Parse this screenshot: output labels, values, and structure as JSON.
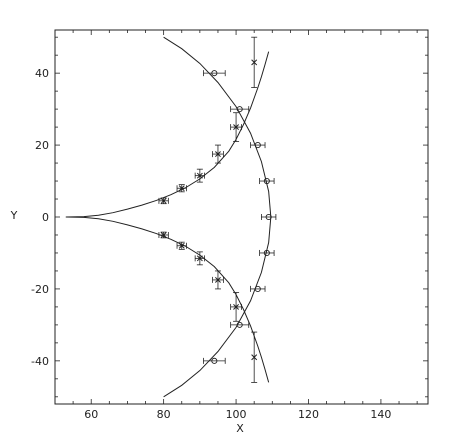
{
  "chart_data": {
    "type": "scatter",
    "title": "",
    "xlabel": "X",
    "ylabel": "Y",
    "xlim": [
      50,
      153
    ],
    "ylim": [
      -52,
      52
    ],
    "grid": false,
    "xticks": [
      60,
      80,
      100,
      120,
      140
    ],
    "yticks": [
      -40,
      -20,
      0,
      20,
      40
    ],
    "curves": [
      {
        "x": [
          53,
          58,
          62,
          66,
          70,
          74,
          78,
          82,
          86,
          90,
          94,
          98,
          100,
          102,
          104,
          106,
          107,
          108,
          109,
          109.5,
          109,
          108,
          107,
          106,
          104,
          102,
          100,
          98,
          94,
          90,
          86,
          82,
          78,
          74,
          70,
          66,
          62,
          58,
          53
        ],
        "y": [
          0,
          0.1,
          0.5,
          1.2,
          2.2,
          3.3,
          4.6,
          6.2,
          8.1,
          10.6,
          13.8,
          18.3,
          21.6,
          25.6,
          30.3,
          35.9,
          39.0,
          42.4,
          46.0,
          0,
          -46.0,
          -42.4,
          -39.0,
          -35.9,
          -30.3,
          -25.6,
          -21.6,
          -18.3,
          -13.8,
          -10.6,
          -8.1,
          -6.2,
          -4.6,
          -3.3,
          -2.2,
          -1.2,
          -0.5,
          -0.1,
          0
        ]
      },
      {
        "x": [
          80,
          85,
          90,
          95,
          100,
          104,
          107,
          109,
          109.6,
          109,
          107,
          104,
          100,
          95,
          90,
          85,
          80
        ],
        "y": [
          50,
          46.8,
          42.7,
          37.4,
          30.7,
          23.3,
          15.4,
          7.1,
          0,
          -7.1,
          -15.4,
          -23.3,
          -30.7,
          -37.4,
          -42.7,
          -46.8,
          -50
        ]
      }
    ],
    "series_x_markers": [
      {
        "x": 80,
        "y": 4.5,
        "xerr": 1.3,
        "yerr": 0.8
      },
      {
        "x": 85,
        "y": 8,
        "xerr": 1.3,
        "yerr": 1
      },
      {
        "x": 90,
        "y": 11.5,
        "xerr": 1.3,
        "yerr": 1.8
      },
      {
        "x": 95,
        "y": 17.5,
        "xerr": 1.5,
        "yerr": 2.5
      },
      {
        "x": 100,
        "y": 25,
        "xerr": 1.5,
        "yerr": 4
      },
      {
        "x": 105,
        "y": 43,
        "xerr": 0,
        "yerr": 7
      },
      {
        "x": 80,
        "y": -5,
        "xerr": 1.3,
        "yerr": 0.8
      },
      {
        "x": 85,
        "y": -8,
        "xerr": 1.3,
        "yerr": 1
      },
      {
        "x": 90,
        "y": -11.5,
        "xerr": 1.3,
        "yerr": 1.8
      },
      {
        "x": 95,
        "y": -17.5,
        "xerr": 1.5,
        "yerr": 2.5
      },
      {
        "x": 100,
        "y": -25,
        "xerr": 1.5,
        "yerr": 4
      },
      {
        "x": 105,
        "y": -39,
        "xerr": 0,
        "yerr": 7
      }
    ],
    "series_o_markers": [
      {
        "x": 94,
        "y": 40,
        "xerr": 3,
        "yerr": 0
      },
      {
        "x": 101,
        "y": 30,
        "xerr": 2.5,
        "yerr": 0
      },
      {
        "x": 106,
        "y": 20,
        "xerr": 2,
        "yerr": 0
      },
      {
        "x": 108.5,
        "y": 10,
        "xerr": 2,
        "yerr": 0
      },
      {
        "x": 109,
        "y": 0,
        "xerr": 2,
        "yerr": 0
      },
      {
        "x": 108.5,
        "y": -10,
        "xerr": 2,
        "yerr": 0
      },
      {
        "x": 106,
        "y": -20,
        "xerr": 2,
        "yerr": 0
      },
      {
        "x": 101,
        "y": -30,
        "xerr": 2.5,
        "yerr": 0
      },
      {
        "x": 94,
        "y": -40,
        "xerr": 3,
        "yerr": 0
      }
    ]
  }
}
